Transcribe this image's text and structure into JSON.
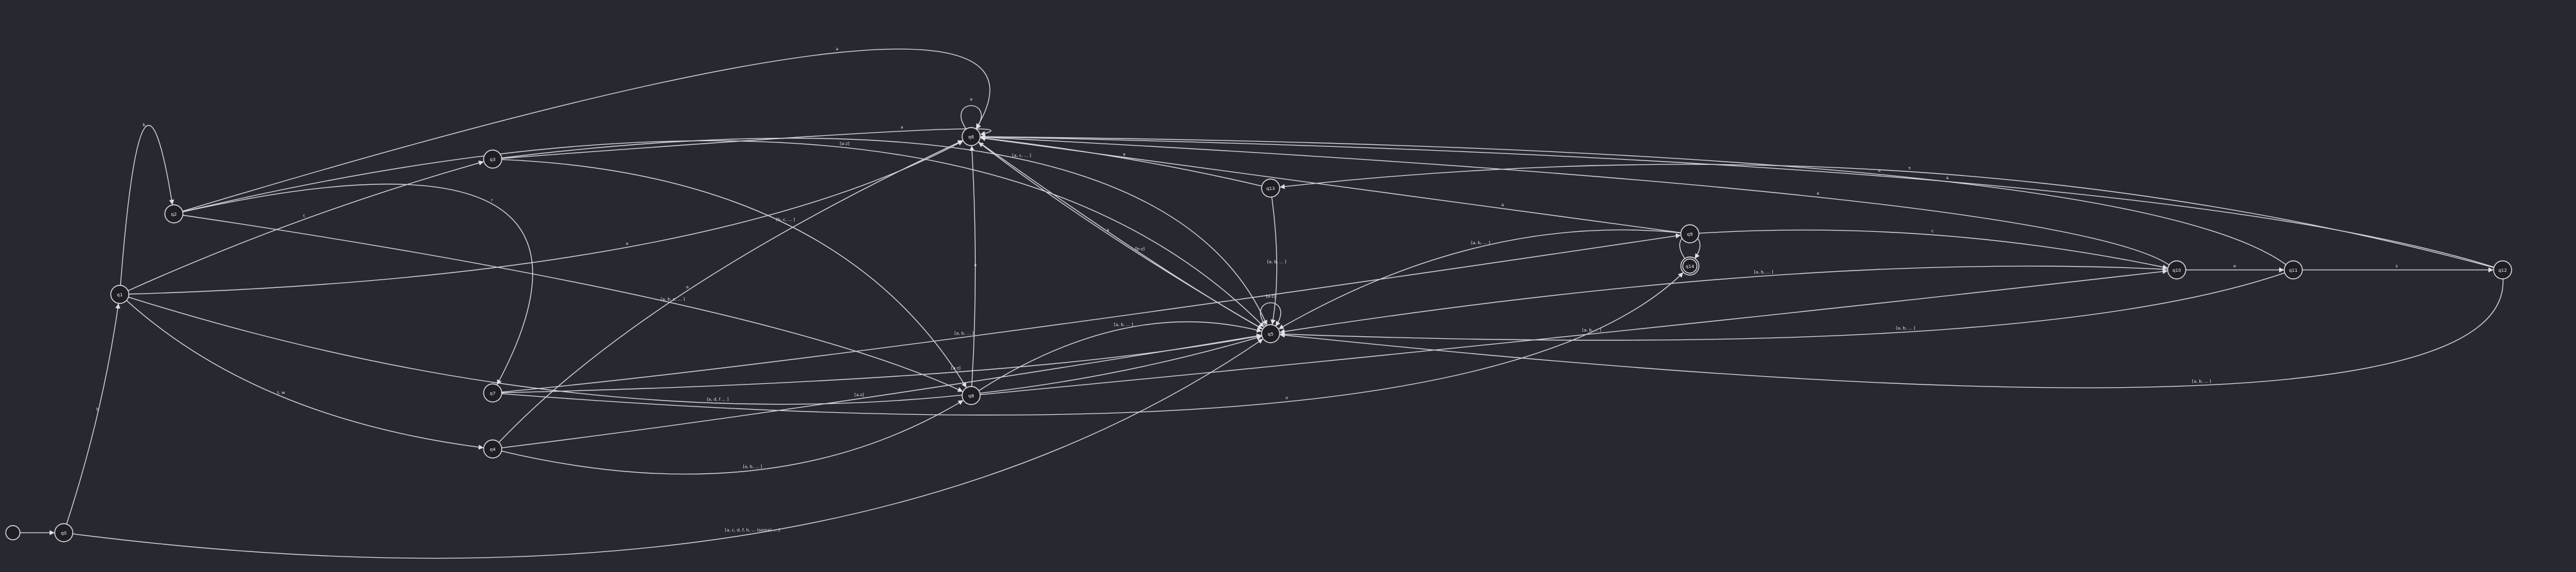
{
  "diagram": {
    "start_label": "",
    "nodes": [
      {
        "id": "q0",
        "label": "q0",
        "accept": false
      },
      {
        "id": "q1",
        "label": "q1",
        "accept": false
      },
      {
        "id": "q2",
        "label": "q2",
        "accept": false
      },
      {
        "id": "q3",
        "label": "q3",
        "accept": false
      },
      {
        "id": "q4",
        "label": "q4",
        "accept": false
      },
      {
        "id": "q5",
        "label": "q5",
        "accept": false
      },
      {
        "id": "q6",
        "label": "q6",
        "accept": false
      },
      {
        "id": "q7",
        "label": "q7",
        "accept": false
      },
      {
        "id": "q8",
        "label": "q8",
        "accept": false
      },
      {
        "id": "q9",
        "label": "q9",
        "accept": false
      },
      {
        "id": "q10",
        "label": "q10",
        "accept": false
      },
      {
        "id": "q11",
        "label": "q11",
        "accept": false
      },
      {
        "id": "q12",
        "label": "q12",
        "accept": false
      },
      {
        "id": "q13",
        "label": "q13",
        "accept": false
      },
      {
        "id": "q14",
        "label": "q14",
        "accept": true
      }
    ],
    "edges": [
      {
        "id": "e-start",
        "from": "start",
        "to": "q0",
        "label": ""
      },
      {
        "id": "e-q0-q1",
        "from": "q0",
        "to": "q1",
        "label": "b"
      },
      {
        "id": "e-q0-q5",
        "from": "q0",
        "to": "q5",
        "label": "[a, c, d, f, h, ... (some) ... ]"
      },
      {
        "id": "e-q1-q2",
        "from": "q1",
        "to": "q2",
        "label": "b"
      },
      {
        "id": "e-q1-q3",
        "from": "q1",
        "to": "q3",
        "label": "c"
      },
      {
        "id": "e-q1-q4",
        "from": "q1",
        "to": "q4",
        "label": "t, w"
      },
      {
        "id": "e-q1-q5",
        "from": "q1",
        "to": "q5",
        "label": "[a, d, f ... ]"
      },
      {
        "id": "e-q1-q6",
        "from": "q1",
        "to": "q6",
        "label": "a"
      },
      {
        "id": "e-q2-q7",
        "from": "q2",
        "to": "q7",
        "label": "r"
      },
      {
        "id": "e-q2-q8",
        "from": "q2",
        "to": "q8",
        "label": "[a, b, c, ... ]"
      },
      {
        "id": "e-q2-q5",
        "from": "q2",
        "to": "q5",
        "label": "[a-z]"
      },
      {
        "id": "e-q2-q6",
        "from": "q2",
        "to": "q6",
        "label": "a"
      },
      {
        "id": "e-q3-q8",
        "from": "q3",
        "to": "q8",
        "label": "[b, c, ... ]"
      },
      {
        "id": "e-q3-q5",
        "from": "q3",
        "to": "q5",
        "label": "[a, c, ... ]"
      },
      {
        "id": "e-q3-q6",
        "from": "q3",
        "to": "q6",
        "label": "a"
      },
      {
        "id": "e-q4-q8",
        "from": "q4",
        "to": "q8",
        "label": "[a, b, ... ]"
      },
      {
        "id": "e-q4-q5",
        "from": "q4",
        "to": "q5",
        "label": "[a-z]"
      },
      {
        "id": "e-q4-q6",
        "from": "q4",
        "to": "q6",
        "label": "a"
      },
      {
        "id": "e-q7-q14",
        "from": "q7",
        "to": "q14",
        "label": "o"
      },
      {
        "id": "e-q7-q9",
        "from": "q7",
        "to": "q9",
        "label": "[a, b, ... ]"
      },
      {
        "id": "e-q7-q5",
        "from": "q7",
        "to": "q5",
        "label": "[a-z]"
      },
      {
        "id": "e-q8-q5",
        "from": "q8",
        "to": "q5",
        "label": "[a, b, ... ]"
      },
      {
        "id": "e-q8-q6",
        "from": "q8",
        "to": "q6",
        "label": "a"
      },
      {
        "id": "e-q8-q10",
        "from": "q8",
        "to": "q10",
        "label": "[a, b, ... ]"
      },
      {
        "id": "e-q9-q10",
        "from": "q9",
        "to": "q10",
        "label": "c"
      },
      {
        "id": "e-q9-q5",
        "from": "q9",
        "to": "q5",
        "label": "[a, b, ... ]"
      },
      {
        "id": "e-q9-q6",
        "from": "q9",
        "to": "q6",
        "label": "a"
      },
      {
        "id": "e-q10-q11",
        "from": "q10",
        "to": "q11",
        "label": "e"
      },
      {
        "id": "e-q10-q5",
        "from": "q10",
        "to": "q5",
        "label": "[a, b, ... ]"
      },
      {
        "id": "e-q10-q6",
        "from": "q10",
        "to": "q6",
        "label": "a"
      },
      {
        "id": "e-q11-q12",
        "from": "q11",
        "to": "q12",
        "label": "s"
      },
      {
        "id": "e-q11-q5",
        "from": "q11",
        "to": "q5",
        "label": "[a, b, ... ]"
      },
      {
        "id": "e-q11-q6",
        "from": "q11",
        "to": "q6",
        "label": "a"
      },
      {
        "id": "e-q12-q13",
        "from": "q12",
        "to": "q13",
        "label": "s"
      },
      {
        "id": "e-q12-q5",
        "from": "q12",
        "to": "q5",
        "label": "[a, b, ... ]"
      },
      {
        "id": "e-q12-q6",
        "from": "q12",
        "to": "q6",
        "label": "a"
      },
      {
        "id": "e-q13-q5",
        "from": "q13",
        "to": "q5",
        "label": "[a, b, ... ]"
      },
      {
        "id": "e-q13-q6",
        "from": "q13",
        "to": "q6",
        "label": "a"
      },
      {
        "id": "e-q5-q5",
        "from": "q5",
        "to": "q5",
        "label": "[a-z]"
      },
      {
        "id": "e-q5-q6",
        "from": "q5",
        "to": "q6",
        "label": "a"
      },
      {
        "id": "e-q6-q6",
        "from": "q6",
        "to": "q6",
        "label": "a"
      },
      {
        "id": "e-q6-q5",
        "from": "q6",
        "to": "q5",
        "label": "[b-z]"
      },
      {
        "id": "e-q14-q14",
        "from": "q14",
        "to": "q14",
        "label": "[a-z]"
      }
    ]
  }
}
